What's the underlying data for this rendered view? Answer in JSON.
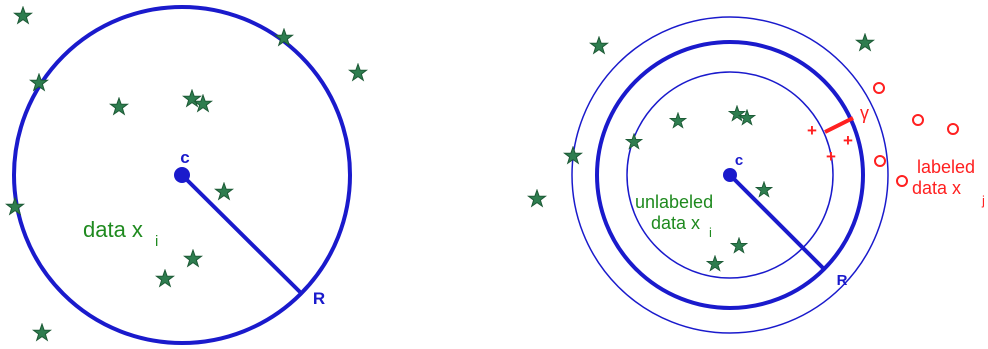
{
  "left_panel": {
    "center_label": "c",
    "radius_label": "R",
    "data_label": "data x",
    "data_subscript": "i"
  },
  "right_panel": {
    "center_label": "c",
    "radius_label": "R",
    "margin_label": "γ",
    "unlabeled_line1": "unlabeled",
    "unlabeled_line2": "data x",
    "unlabeled_subscript": "i",
    "labeled_line1": "labeled",
    "labeled_line2": "data x",
    "labeled_subscript": "j",
    "plus_marks": [
      "+",
      "+",
      "+"
    ]
  },
  "colors": {
    "sphere": "#1a1acc",
    "unlabeled_points": "#2e7d4f",
    "labeled_points": "#ff2020",
    "margin": "#ff2020"
  },
  "icons": {
    "unlabeled_point": "star-icon",
    "labeled_point": "circle-outline-icon"
  }
}
